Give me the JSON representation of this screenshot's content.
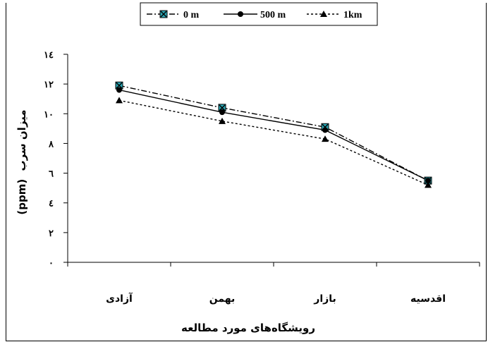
{
  "chart_data": {
    "type": "line",
    "categories": [
      "آزادی",
      "بهمن",
      "بازار",
      "اقدسیه"
    ],
    "series": [
      {
        "name": "0 m",
        "values": [
          11.9,
          10.4,
          9.1,
          5.5
        ],
        "dash": "8,3,2,3",
        "marker": "square-x",
        "color": "#000000",
        "marker_fill": "#2aa7b4"
      },
      {
        "name": "500 m",
        "values": [
          11.6,
          10.1,
          8.9,
          5.5
        ],
        "dash": "",
        "marker": "circle",
        "color": "#000000",
        "marker_fill": "#000000"
      },
      {
        "name": "1km",
        "values": [
          10.9,
          9.5,
          8.3,
          5.2
        ],
        "dash": "3,3",
        "marker": "triangle",
        "color": "#000000",
        "marker_fill": "#000000"
      }
    ],
    "yticks": [
      "۰",
      "۲",
      "٤",
      "٦",
      "۸",
      "۱۰",
      "۱۲",
      "۱٤"
    ],
    "ylim": [
      0,
      14
    ],
    "ylabel_ar": "میزان سرب",
    "ylabel_unit": "(ppm)",
    "xlabel": "رویشگاه‌های مورد مطالعه",
    "legend_position": "top",
    "grid": false
  }
}
